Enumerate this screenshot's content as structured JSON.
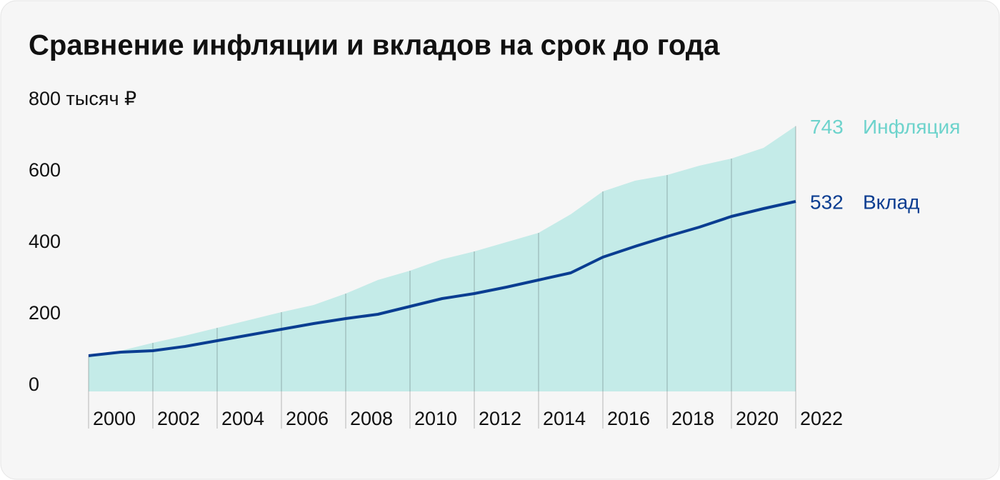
{
  "chart_data": {
    "type": "line",
    "title": "Сравнение инфляции и вкладов на срок до года",
    "x": [
      2000,
      2001,
      2002,
      2003,
      2004,
      2005,
      2006,
      2007,
      2008,
      2009,
      2010,
      2011,
      2012,
      2013,
      2014,
      2015,
      2016,
      2017,
      2018,
      2019,
      2020,
      2021,
      2022
    ],
    "series": [
      {
        "name": "Инфляция",
        "color": "#6dd3cc",
        "fill": "#c4ebe8",
        "style": "area",
        "values": [
          100,
          114,
          136,
          156,
          178,
          200,
          222,
          242,
          274,
          312,
          338,
          370,
          392,
          418,
          444,
          496,
          560,
          590,
          606,
          632,
          652,
          682,
          743
        ]
      },
      {
        "name": "Вклад",
        "color": "#0a3d91",
        "style": "line",
        "values": [
          100,
          110,
          114,
          126,
          142,
          158,
          174,
          190,
          204,
          216,
          238,
          260,
          274,
          292,
          312,
          332,
          376,
          406,
          434,
          460,
          490,
          512,
          532
        ]
      }
    ],
    "xlim": [
      2000,
      2022
    ],
    "xticks": [
      2000,
      2002,
      2004,
      2006,
      2008,
      2010,
      2012,
      2014,
      2016,
      2018,
      2020,
      2022
    ],
    "ylim": [
      0,
      800
    ],
    "yticks": [
      0,
      200,
      400,
      600,
      {
        "value": 800,
        "label": "800 тысяч ₽"
      }
    ],
    "grid": true
  }
}
